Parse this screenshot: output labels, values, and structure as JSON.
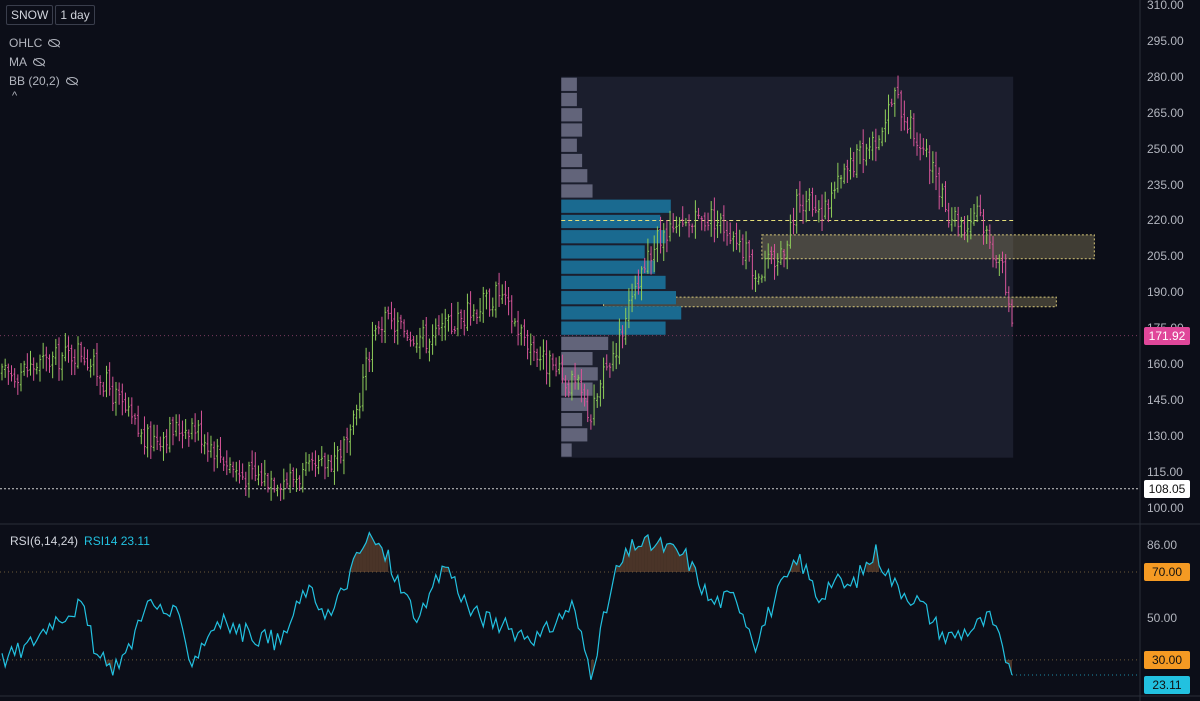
{
  "header": {
    "symbol": "SNOW",
    "interval": "1 day"
  },
  "indicators": [
    {
      "label": "OHLC"
    },
    {
      "label": "MA"
    },
    {
      "label": "BB (20,2)"
    }
  ],
  "collapse_glyph": "^",
  "price_axis": {
    "labels": [
      "310.00",
      "295.00",
      "280.00",
      "265.00",
      "250.00",
      "235.00",
      "220.00",
      "205.00",
      "190.00",
      "175.00",
      "160.00",
      "145.00",
      "130.00",
      "115.00",
      "100.00"
    ]
  },
  "badges": {
    "last_price": "171.92",
    "low_line": "108.05",
    "rsi_70": "70.00",
    "rsi_30": "30.00",
    "rsi_current": "23.11"
  },
  "rsi": {
    "title": "RSI(6,14,24)",
    "series_label": "RSI14",
    "value": "23.11",
    "axis_labels": [
      "86.00",
      "50.00"
    ]
  },
  "colors": {
    "background": "#0c0e18",
    "up": "#8fce5a",
    "down": "#d8559a",
    "rsi_line": "#22c1e0",
    "vp_value_area": "#1a6a90",
    "vp_other": "#62647a",
    "zone": "#d9c97a",
    "last_badge": "#e0479a"
  },
  "chart_data": {
    "type": "candlestick",
    "y_range": [
      95,
      312
    ],
    "bar_count": 320,
    "price_path_anchors": [
      [
        0,
        155
      ],
      [
        12,
        160
      ],
      [
        25,
        166
      ],
      [
        35,
        148
      ],
      [
        45,
        128
      ],
      [
        60,
        135
      ],
      [
        75,
        114
      ],
      [
        90,
        112
      ],
      [
        100,
        116
      ],
      [
        110,
        128
      ],
      [
        118,
        178
      ],
      [
        125,
        176
      ],
      [
        135,
        170
      ],
      [
        148,
        182
      ],
      [
        157,
        190
      ],
      [
        163,
        175
      ],
      [
        172,
        160
      ],
      [
        177,
        154
      ],
      [
        182,
        150
      ],
      [
        186,
        138
      ],
      [
        190,
        155
      ],
      [
        196,
        175
      ],
      [
        206,
        210
      ],
      [
        214,
        216
      ],
      [
        224,
        222
      ],
      [
        232,
        214
      ],
      [
        238,
        198
      ],
      [
        246,
        206
      ],
      [
        252,
        230
      ],
      [
        258,
        222
      ],
      [
        268,
        243
      ],
      [
        276,
        255
      ],
      [
        282,
        272
      ],
      [
        286,
        262
      ],
      [
        293,
        243
      ],
      [
        298,
        225
      ],
      [
        305,
        218
      ],
      [
        308,
        228
      ],
      [
        312,
        210
      ],
      [
        315,
        205
      ],
      [
        319,
        180
      ]
    ],
    "gap_bars": [
      118
    ],
    "last_price": 171.92,
    "low_line": 108.05,
    "volume_profile": {
      "range_bars": [
        176,
        320
      ],
      "price_range": [
        121,
        280
      ],
      "row_values": [
        2,
        5,
        4,
        5,
        6,
        7,
        6,
        9,
        20,
        23,
        22,
        20,
        18,
        16,
        20,
        19,
        21,
        6,
        5,
        4,
        3,
        4,
        4,
        3,
        3
      ],
      "value_area_rows": [
        8,
        16
      ],
      "poc_price": 220
    },
    "zones": [
      {
        "price_low": 204,
        "price_high": 214,
        "from_bar": 240,
        "to_bar": 345
      },
      {
        "price_low": 184,
        "price_high": 188,
        "from_bar": 190,
        "to_bar": 333
      }
    ],
    "rsi": {
      "range": [
        14,
        90
      ],
      "levels": [
        70,
        30
      ],
      "current": 23.11,
      "path_anchors": [
        [
          0,
          30
        ],
        [
          8,
          36
        ],
        [
          16,
          48
        ],
        [
          25,
          55
        ],
        [
          30,
          32
        ],
        [
          34,
          26
        ],
        [
          40,
          34
        ],
        [
          45,
          56
        ],
        [
          55,
          50
        ],
        [
          60,
          30
        ],
        [
          68,
          48
        ],
        [
          75,
          43
        ],
        [
          88,
          38
        ],
        [
          96,
          62
        ],
        [
          104,
          50
        ],
        [
          112,
          76
        ],
        [
          116,
          86
        ],
        [
          122,
          76
        ],
        [
          126,
          62
        ],
        [
          132,
          48
        ],
        [
          140,
          74
        ],
        [
          148,
          52
        ],
        [
          160,
          44
        ],
        [
          170,
          40
        ],
        [
          180,
          55
        ],
        [
          186,
          25
        ],
        [
          194,
          70
        ],
        [
          200,
          83
        ],
        [
          208,
          82
        ],
        [
          216,
          77
        ],
        [
          224,
          56
        ],
        [
          232,
          59
        ],
        [
          238,
          38
        ],
        [
          245,
          60
        ],
        [
          252,
          76
        ],
        [
          258,
          58
        ],
        [
          262,
          66
        ],
        [
          268,
          63
        ],
        [
          276,
          79
        ],
        [
          282,
          64
        ],
        [
          290,
          56
        ],
        [
          298,
          40
        ],
        [
          306,
          44
        ],
        [
          312,
          49
        ],
        [
          316,
          35
        ],
        [
          320,
          23
        ]
      ]
    }
  }
}
